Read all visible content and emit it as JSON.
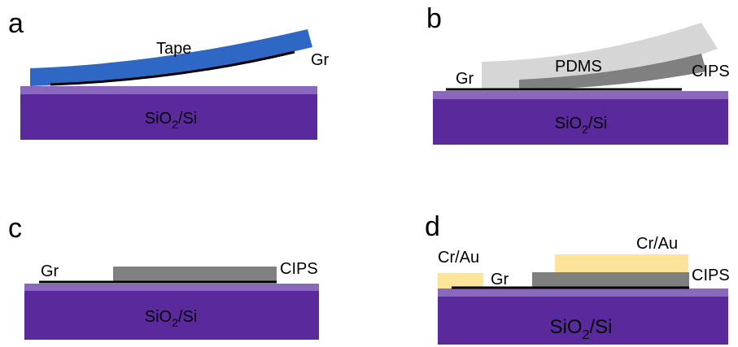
{
  "panels": [
    {
      "letter": "a",
      "substrate": {
        "base": "SiO",
        "sub": "2",
        "rest": "/Si"
      },
      "labels": {
        "tape": "Tape",
        "gr": "Gr"
      }
    },
    {
      "letter": "b",
      "substrate": {
        "base": "SiO",
        "sub": "2",
        "rest": "/Si"
      },
      "labels": {
        "gr": "Gr",
        "pdms": "PDMS",
        "cips": "CIPS"
      }
    },
    {
      "letter": "c",
      "substrate": {
        "base": "SiO",
        "sub": "2",
        "rest": "/Si"
      },
      "labels": {
        "gr": "Gr",
        "cips": "CIPS"
      }
    },
    {
      "letter": "d",
      "substrate": {
        "base": "SiO",
        "sub": "2",
        "rest": "/Si"
      },
      "labels": {
        "crau_left": "Cr/Au",
        "gr": "Gr",
        "crau_right": "Cr/Au",
        "cips": "CIPS"
      }
    }
  ]
}
